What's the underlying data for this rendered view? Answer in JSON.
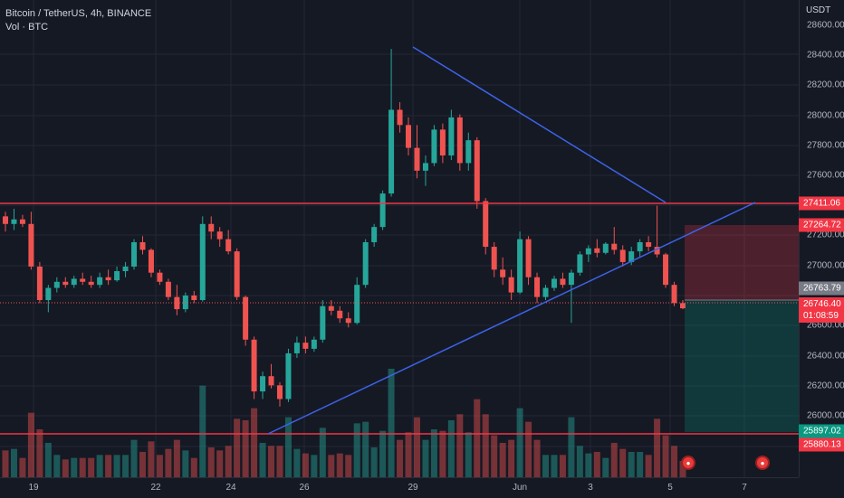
{
  "legend": {
    "symbol": "Bitcoin / TetherUS, 4h, BINANCE",
    "volume": "Vol · BTC"
  },
  "price_axis": {
    "unit": "USDT",
    "ticks": [
      "28600.00",
      "28400.00",
      "28200.00",
      "28000.00",
      "27800.00",
      "27600.00",
      "27200.00",
      "27000.00",
      "26600.00",
      "26400.00",
      "26200.00",
      "26000.00"
    ]
  },
  "time_axis": {
    "ticks": [
      "19",
      "22",
      "24",
      "26",
      "29",
      "Jun",
      "3",
      "5",
      "7"
    ]
  },
  "price_labels": {
    "resistance": "27411.06",
    "stop": "27264.72",
    "entry": "26763.79",
    "current": "26746.40",
    "countdown": "01:08:59",
    "target": "25897.02",
    "support": "25880.13"
  },
  "colors": {
    "up": "#26a69a",
    "down": "#ef5350",
    "trendline": "#3d63e8",
    "hline": "#f23645",
    "background": "#151924"
  },
  "events": [
    "flag-icon",
    "flag-icon"
  ],
  "chart_data": {
    "type": "candlestick",
    "title": "Bitcoin / TetherUS, 4h, BINANCE",
    "ylim": [
      25850,
      28700
    ],
    "hlines": [
      27411.06,
      25880.13
    ],
    "trendlines": [
      {
        "from": [
          "29",
          28450
        ],
        "to": [
          "5",
          27410
        ]
      },
      {
        "from": [
          "25",
          25890
        ],
        "to": [
          "6",
          27410
        ]
      }
    ],
    "position": {
      "entry": 26763.79,
      "stop": 27264.72,
      "target": 25897.02
    },
    "candles": [
      [
        27350,
        27380,
        27250,
        27300
      ],
      [
        27300,
        27400,
        27260,
        27330
      ],
      [
        27330,
        27360,
        27280,
        27300
      ],
      [
        27300,
        27380,
        27000,
        27020
      ],
      [
        27020,
        27050,
        26780,
        26800
      ],
      [
        26800,
        26900,
        26720,
        26880
      ],
      [
        26880,
        26950,
        26850,
        26920
      ],
      [
        26920,
        26950,
        26880,
        26900
      ],
      [
        26900,
        26960,
        26880,
        26940
      ],
      [
        26940,
        26980,
        26900,
        26920
      ],
      [
        26920,
        26960,
        26880,
        26900
      ],
      [
        26900,
        26980,
        26880,
        26950
      ],
      [
        26950,
        27000,
        26900,
        26930
      ],
      [
        26930,
        27020,
        26920,
        26990
      ],
      [
        26990,
        27050,
        26950,
        27020
      ],
      [
        27020,
        27200,
        27000,
        27180
      ],
      [
        27180,
        27220,
        27100,
        27130
      ],
      [
        27130,
        27140,
        26950,
        26980
      ],
      [
        26980,
        27000,
        26900,
        26920
      ],
      [
        26920,
        26940,
        26800,
        26820
      ],
      [
        26820,
        26900,
        26700,
        26740
      ],
      [
        26740,
        26850,
        26720,
        26830
      ],
      [
        26830,
        26860,
        26780,
        26800
      ],
      [
        26800,
        27350,
        26790,
        27300
      ],
      [
        27300,
        27350,
        27200,
        27250
      ],
      [
        27250,
        27280,
        27150,
        27200
      ],
      [
        27200,
        27260,
        27100,
        27120
      ],
      [
        27120,
        27140,
        26800,
        26820
      ],
      [
        26820,
        26830,
        26500,
        26540
      ],
      [
        26540,
        26560,
        26150,
        26200
      ],
      [
        26200,
        26330,
        26150,
        26300
      ],
      [
        26300,
        26380,
        26220,
        26240
      ],
      [
        26240,
        26260,
        26100,
        26150
      ],
      [
        26150,
        26480,
        26130,
        26450
      ],
      [
        26450,
        26560,
        26420,
        26520
      ],
      [
        26520,
        26560,
        26450,
        26480
      ],
      [
        26480,
        26560,
        26460,
        26540
      ],
      [
        26540,
        26800,
        26520,
        26760
      ],
      [
        26760,
        26800,
        26700,
        26730
      ],
      [
        26730,
        26760,
        26650,
        26680
      ],
      [
        26680,
        26720,
        26620,
        26650
      ],
      [
        26650,
        26950,
        26640,
        26900
      ],
      [
        26900,
        27200,
        26880,
        27180
      ],
      [
        27180,
        27300,
        27150,
        27280
      ],
      [
        27280,
        27520,
        27260,
        27500
      ],
      [
        27500,
        28450,
        27480,
        28050
      ],
      [
        28050,
        28100,
        27900,
        27950
      ],
      [
        27950,
        28000,
        27750,
        27800
      ],
      [
        27800,
        27950,
        27600,
        27650
      ],
      [
        27650,
        27750,
        27550,
        27700
      ],
      [
        27700,
        27950,
        27680,
        27920
      ],
      [
        27920,
        27960,
        27700,
        27750
      ],
      [
        27750,
        28050,
        27720,
        28000
      ],
      [
        28000,
        28020,
        27650,
        27700
      ],
      [
        27700,
        27900,
        27650,
        27850
      ],
      [
        27850,
        27870,
        27400,
        27450
      ],
      [
        27450,
        27470,
        27100,
        27150
      ],
      [
        27150,
        27180,
        26950,
        27000
      ],
      [
        27000,
        27080,
        26900,
        26950
      ],
      [
        26950,
        27000,
        26800,
        26850
      ],
      [
        26850,
        27250,
        26840,
        27200
      ],
      [
        27200,
        27220,
        26900,
        26950
      ],
      [
        26950,
        26980,
        26780,
        26820
      ],
      [
        26820,
        26900,
        26800,
        26880
      ],
      [
        26880,
        26960,
        26860,
        26940
      ],
      [
        26940,
        26980,
        26880,
        26900
      ],
      [
        26900,
        27000,
        26650,
        26980
      ],
      [
        26980,
        27120,
        26960,
        27100
      ],
      [
        27100,
        27160,
        27050,
        27140
      ],
      [
        27140,
        27200,
        27080,
        27110
      ],
      [
        27110,
        27180,
        27100,
        27170
      ],
      [
        27170,
        27280,
        27100,
        27130
      ],
      [
        27130,
        27160,
        27020,
        27050
      ],
      [
        27050,
        27150,
        27030,
        27120
      ],
      [
        27120,
        27200,
        27080,
        27180
      ],
      [
        27180,
        27220,
        27120,
        27150
      ],
      [
        27150,
        27420,
        27080,
        27100
      ],
      [
        27100,
        27110,
        26880,
        26900
      ],
      [
        26900,
        26920,
        26760,
        26780
      ],
      [
        26780,
        26800,
        26740,
        26746
      ]
    ]
  }
}
